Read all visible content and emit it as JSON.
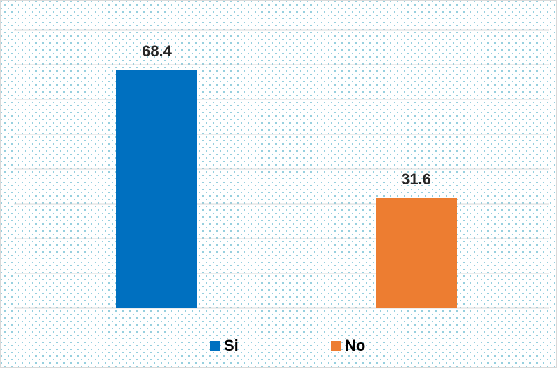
{
  "chart_data": {
    "type": "bar",
    "categories": [
      null
    ],
    "series": [
      {
        "name": "Si",
        "color": "#0070c0",
        "values": [
          68.4
        ]
      },
      {
        "name": "No",
        "color": "#ed7d31",
        "values": [
          31.6
        ]
      }
    ],
    "ylim": [
      0,
      80
    ],
    "yticks": [
      0,
      10,
      20,
      30,
      40,
      50,
      60,
      70,
      80
    ],
    "grid": true,
    "legend": "bottom"
  }
}
